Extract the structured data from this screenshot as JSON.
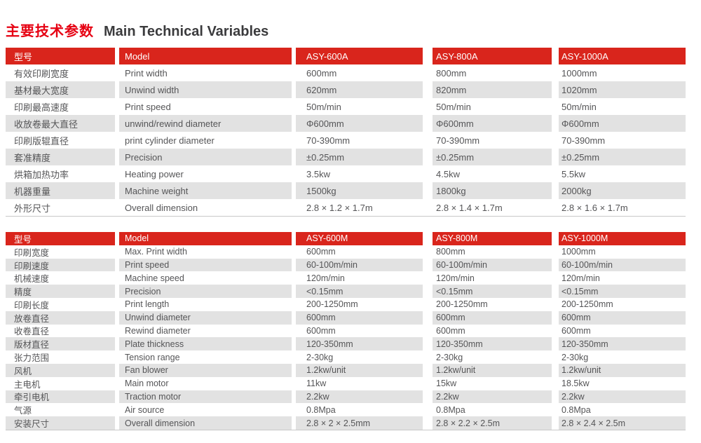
{
  "page": {
    "title_cn": "主要技术参数",
    "title_en": "Main Technical Variables"
  },
  "colors": {
    "header_red": "#d9251c",
    "title_red": "#e60012",
    "row_gray": "#e2e2e2",
    "text_gray": "#555557"
  },
  "tables": [
    {
      "name": "a-series-spec-table",
      "header": [
        "型号",
        "Model",
        "ASY-600A",
        "ASY-800A",
        "ASY-1000A"
      ],
      "rows": [
        [
          "有效印刷宽度",
          "Print width",
          "600mm",
          "800mm",
          "1000mm"
        ],
        [
          "基材最大宽度",
          "Unwind width",
          "620mm",
          "820mm",
          "1020mm"
        ],
        [
          "印刷最高速度",
          "Print speed",
          "50m/min",
          "50m/min",
          "50m/min"
        ],
        [
          "收放卷最大直径",
          "unwind/rewind diameter",
          "Φ600mm",
          "Φ600mm",
          "Φ600mm"
        ],
        [
          "印刷版辊直径",
          "print cylinder diameter",
          "70-390mm",
          "70-390mm",
          "70-390mm"
        ],
        [
          "套准精度",
          "Precision",
          "±0.25mm",
          "±0.25mm",
          "±0.25mm"
        ],
        [
          "烘箱加热功率",
          "Heating power",
          "3.5kw",
          "4.5kw",
          "5.5kw"
        ],
        [
          "机器重量",
          "Machine weight",
          "1500kg",
          "1800kg",
          "2000kg"
        ],
        [
          "外形尺寸",
          "Overall dimension",
          "2.8 × 1.2 × 1.7m",
          "2.8 × 1.4 × 1.7m",
          "2.8 × 1.6 × 1.7m"
        ]
      ]
    },
    {
      "name": "m-series-spec-table",
      "header": [
        "型号",
        "Model",
        "ASY-600M",
        "ASY-800M",
        "ASY-1000M"
      ],
      "rows": [
        [
          "印刷宽度",
          "Max. Print width",
          "600mm",
          "800mm",
          "1000mm"
        ],
        [
          "印刷速度",
          "Print speed",
          "60-100m/min",
          "60-100m/min",
          "60-100m/min"
        ],
        [
          "机械速度",
          "Machine speed",
          "120m/min",
          "120m/min",
          "120m/min"
        ],
        [
          "精度",
          "Precision",
          "<0.15mm",
          "<0.15mm",
          "<0.15mm"
        ],
        [
          "印刷长度",
          "Print length",
          "200-1250mm",
          "200-1250mm",
          "200-1250mm"
        ],
        [
          "放卷直径",
          "Unwind diameter",
          "600mm",
          "600mm",
          "600mm"
        ],
        [
          "收卷直径",
          "Rewind diameter",
          "600mm",
          "600mm",
          "600mm"
        ],
        [
          "版材直径",
          "Plate thickness",
          "120-350mm",
          "120-350mm",
          "120-350mm"
        ],
        [
          "张力范围",
          "Tension range",
          "2-30kg",
          "2-30kg",
          "2-30kg"
        ],
        [
          "风机",
          "Fan blower",
          "1.2kw/unit",
          "1.2kw/unit",
          "1.2kw/unit"
        ],
        [
          "主电机",
          "Main motor",
          "11kw",
          "15kw",
          "18.5kw"
        ],
        [
          "牵引电机",
          "Traction motor",
          "2.2kw",
          "2.2kw",
          "2.2kw"
        ],
        [
          "气源",
          "Air source",
          "0.8Mpa",
          "0.8Mpa",
          "0.8Mpa"
        ],
        [
          "安装尺寸",
          "Overall dimension",
          "2.8 × 2 × 2.5mm",
          "2.8 × 2.2 × 2.5m",
          "2.8 × 2.4 × 2.5m"
        ]
      ]
    }
  ]
}
